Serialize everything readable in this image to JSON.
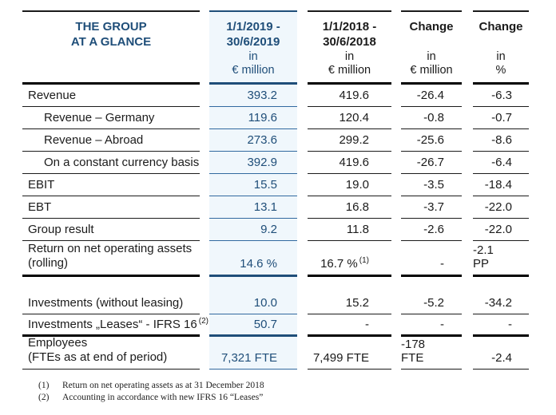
{
  "colors": {
    "accent_navy": "#1F4E79",
    "thin_blue_rule": "#31699F",
    "text_black": "#1B1B1B",
    "column_2019_tint": "#F0F7FC"
  },
  "header": {
    "group_title": {
      "line1": "THE GROUP",
      "line2": "AT A GLANCE"
    },
    "col_2019": {
      "period_line1": "1/1/2019 -",
      "period_line2": "30/6/2019",
      "unit_prefix": "in",
      "unit": "€ million"
    },
    "col_2018": {
      "period_line1": "1/1/2018 -",
      "period_line2": "30/6/2018",
      "unit_prefix": "in",
      "unit": "€ million"
    },
    "col_change_abs": {
      "title": "Change",
      "unit_prefix": "in",
      "unit": "€ million"
    },
    "col_change_pct": {
      "title": "Change",
      "unit_prefix": "in",
      "unit": "%"
    }
  },
  "table": {
    "rows": [
      {
        "label": "Revenue",
        "v2019": "393.2",
        "v2018": "419.6",
        "chg_eur": "-26.4",
        "chg_pct": "-6.3"
      },
      {
        "label": "Revenue – Germany",
        "v2019": "119.6",
        "v2018": "120.4",
        "chg_eur": "-0.8",
        "chg_pct": "-0.7"
      },
      {
        "label": "Revenue – Abroad",
        "v2019": "273.6",
        "v2018": "299.2",
        "chg_eur": "-25.6",
        "chg_pct": "-8.6"
      },
      {
        "label": "On a constant currency basis",
        "v2019": "392.9",
        "v2018": "419.6",
        "chg_eur": "-26.7",
        "chg_pct": "-6.4"
      },
      {
        "label": "EBIT",
        "v2019": "15.5",
        "v2018": "19.0",
        "chg_eur": "-3.5",
        "chg_pct": "-18.4"
      },
      {
        "label": "EBT",
        "v2019": "13.1",
        "v2018": "16.8",
        "chg_eur": "-3.7",
        "chg_pct": "-22.0"
      },
      {
        "label": "Group result",
        "v2019": "9.2",
        "v2018": "11.8",
        "chg_eur": "-2.6",
        "chg_pct": "-22.0"
      },
      {
        "label_line1": "Return on net operating assets",
        "label_line2": "(rolling)",
        "v2019": "14.6 %",
        "v2018": "16.7 %",
        "v2018_note": "(1)",
        "chg_eur": "-",
        "chg_pct": "-2.1 PP"
      },
      {
        "label": "Investments (without leasing)",
        "v2019": "10.0",
        "v2018": "15.2",
        "chg_eur": "-5.2",
        "chg_pct": "-34.2"
      },
      {
        "label": "Investments „Leases“ - IFRS 16",
        "label_note": "(2)",
        "v2019": "50.7",
        "v2018": "-",
        "chg_eur": "-",
        "chg_pct": "-"
      },
      {
        "label_line1": "Employees",
        "label_line2": "(FTEs as at end of period)",
        "v2019": "7,321 FTE",
        "v2018": "7,499 FTE",
        "chg_eur": "-178 FTE",
        "chg_pct": "-2.4"
      }
    ]
  },
  "footnotes": {
    "f1": {
      "marker": "(1)",
      "text": "Return on net operating assets as at 31 December 2018"
    },
    "f2": {
      "marker": "(2)",
      "text": "Accounting in accordance with new IFRS 16 “Leases”"
    }
  }
}
